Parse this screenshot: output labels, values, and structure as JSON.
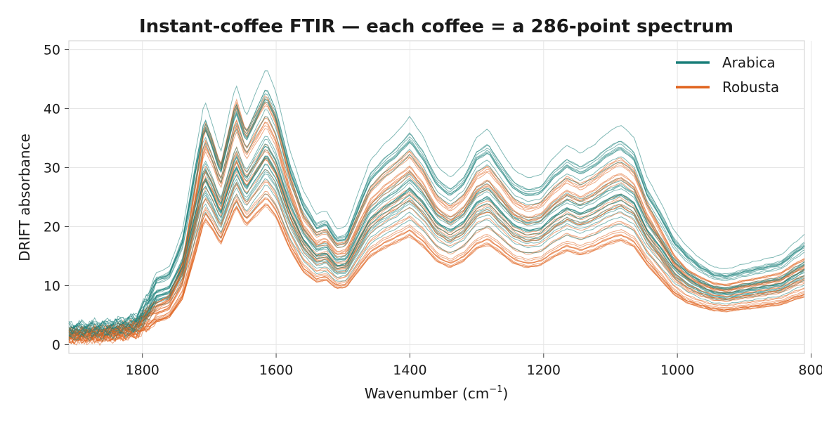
{
  "chart_data": {
    "type": "line",
    "title": "Instant-coffee FTIR — each coffee = a 286-point spectrum",
    "xlabel": "Wavenumber (cm",
    "xlabel_sup": "−1",
    "xlabel_end": ")",
    "ylabel": "DRIFT absorbance",
    "xlim": [
      1910,
      810
    ],
    "x_reversed": true,
    "ylim": [
      -1.5,
      51.5
    ],
    "x_ticks": [
      1800,
      1600,
      1400,
      1200,
      1000,
      800
    ],
    "x_tick_labels": [
      "1800",
      "1600",
      "1400",
      "1200",
      "1000",
      "800"
    ],
    "y_ticks": [
      0,
      10,
      20,
      30,
      40,
      50
    ],
    "y_tick_labels": [
      "0",
      "10",
      "20",
      "30",
      "40",
      "50"
    ],
    "grid": true,
    "legend_position": "top-right",
    "points_per_spectrum": 286,
    "x_range": [
      1910,
      810
    ],
    "colors": {
      "Arabica": "#1a7f7a",
      "Robusta": "#e0631d"
    },
    "series": [
      {
        "name": "Arabica",
        "count": 29,
        "profile": {
          "x": [
            1910,
            1850,
            1810,
            1790,
            1780,
            1760,
            1740,
            1720,
            1707,
            1695,
            1683,
            1670,
            1660,
            1645,
            1630,
            1615,
            1600,
            1580,
            1560,
            1540,
            1525,
            1510,
            1495,
            1480,
            1460,
            1440,
            1420,
            1400,
            1380,
            1360,
            1340,
            1320,
            1300,
            1283,
            1265,
            1245,
            1225,
            1205,
            1185,
            1165,
            1145,
            1125,
            1105,
            1085,
            1065,
            1045,
            1025,
            1005,
            985,
            965,
            945,
            925,
            905,
            885,
            865,
            845,
            825,
            810
          ],
          "y": [
            2.2,
            2.6,
            3.4,
            6.5,
            8.8,
            9.5,
            14,
            24,
            30,
            27,
            23.5,
            28.5,
            32,
            28,
            31,
            34,
            31,
            24,
            19,
            16,
            16.5,
            14.2,
            14.5,
            18,
            22.5,
            24.5,
            26,
            28,
            25.5,
            22,
            20.5,
            22,
            25.5,
            26.5,
            24,
            21.5,
            20.5,
            20.8,
            23,
            24.5,
            23.5,
            24.5,
            26,
            27,
            25.5,
            20.5,
            17.5,
            14,
            12,
            10.5,
            9.5,
            9.3,
            9.8,
            10.2,
            10.6,
            11,
            12.5,
            13.5
          ]
        }
      },
      {
        "name": "Robusta",
        "count": 29,
        "profile": {
          "x": [
            1910,
            1850,
            1810,
            1790,
            1780,
            1760,
            1740,
            1720,
            1707,
            1695,
            1683,
            1670,
            1660,
            1645,
            1630,
            1615,
            1600,
            1580,
            1560,
            1540,
            1525,
            1510,
            1495,
            1480,
            1460,
            1440,
            1420,
            1400,
            1380,
            1360,
            1340,
            1320,
            1300,
            1283,
            1265,
            1245,
            1225,
            1205,
            1185,
            1165,
            1145,
            1125,
            1105,
            1085,
            1065,
            1045,
            1025,
            1005,
            985,
            965,
            945,
            925,
            905,
            885,
            865,
            845,
            825,
            810
          ],
          "y": [
            1.5,
            1.8,
            2.6,
            4.6,
            5.5,
            6.5,
            11,
            22,
            30,
            27.5,
            24,
            29,
            33,
            28.5,
            31,
            33.5,
            30.5,
            23,
            17.5,
            15,
            15.5,
            13.5,
            13.8,
            17,
            21,
            23,
            24.5,
            26,
            23.5,
            20,
            18.5,
            20,
            23,
            24,
            22,
            19.5,
            18.5,
            19,
            21,
            22.5,
            21.5,
            22.5,
            24,
            25,
            23.5,
            19,
            15.5,
            12,
            10,
            9,
            8.2,
            8,
            8.5,
            8.8,
            9.2,
            9.6,
            10.8,
            11.5
          ]
        }
      }
    ],
    "legend": [
      {
        "name": "Arabica",
        "color": "#1a7f7a"
      },
      {
        "name": "Robusta",
        "color": "#e0631d"
      }
    ]
  }
}
